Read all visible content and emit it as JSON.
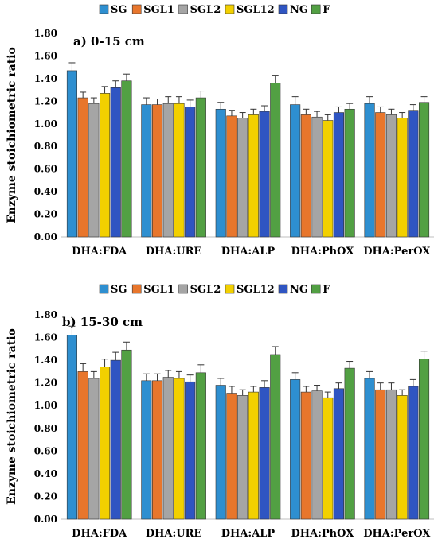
{
  "figure": {
    "ylabel": "Enzyme stoichiometric ratio"
  },
  "legend": [
    {
      "name": "SG",
      "color": "#2E8FD0"
    },
    {
      "name": "SGL1",
      "color": "#E8762C"
    },
    {
      "name": "SGL2",
      "color": "#A5A5A5"
    },
    {
      "name": "SGL12",
      "color": "#F2D000"
    },
    {
      "name": "NG",
      "color": "#2F55C2"
    },
    {
      "name": "F",
      "color": "#52A043"
    }
  ],
  "chart_data": [
    {
      "type": "bar",
      "title": "a) 0-15 cm",
      "ylabel": "Enzyme stoichiometric ratio",
      "ylim": [
        0,
        1.8
      ],
      "yticks": [
        "0.00",
        "0.20",
        "0.40",
        "0.60",
        "0.80",
        "1.00",
        "1.20",
        "1.40",
        "1.60",
        "1.80"
      ],
      "categories": [
        "DHA:FDA",
        "DHA:URE",
        "DHA:ALP",
        "DHA:PhOX",
        "DHA:PerOX"
      ],
      "legend_placement": "top",
      "series": [
        {
          "name": "SG",
          "values": [
            1.47,
            1.17,
            1.13,
            1.17,
            1.18
          ],
          "errors": [
            0.07,
            0.06,
            0.06,
            0.07,
            0.06
          ]
        },
        {
          "name": "SGL1",
          "values": [
            1.23,
            1.17,
            1.07,
            1.08,
            1.1
          ],
          "errors": [
            0.05,
            0.05,
            0.05,
            0.05,
            0.05
          ]
        },
        {
          "name": "SGL2",
          "values": [
            1.18,
            1.18,
            1.05,
            1.06,
            1.08
          ],
          "errors": [
            0.05,
            0.06,
            0.05,
            0.05,
            0.05
          ]
        },
        {
          "name": "SGL12",
          "values": [
            1.27,
            1.18,
            1.08,
            1.03,
            1.05
          ],
          "errors": [
            0.06,
            0.06,
            0.05,
            0.05,
            0.05
          ]
        },
        {
          "name": "NG",
          "values": [
            1.32,
            1.15,
            1.11,
            1.1,
            1.12
          ],
          "errors": [
            0.06,
            0.06,
            0.05,
            0.05,
            0.05
          ]
        },
        {
          "name": "F",
          "values": [
            1.38,
            1.23,
            1.36,
            1.13,
            1.19
          ],
          "errors": [
            0.06,
            0.06,
            0.07,
            0.05,
            0.05
          ]
        }
      ]
    },
    {
      "type": "bar",
      "title": "b) 15-30 cm",
      "ylabel": "Enzyme stoichiometric ratio",
      "ylim": [
        0,
        1.8
      ],
      "yticks": [
        "0.00",
        "0.20",
        "0.40",
        "0.60",
        "0.80",
        "1.00",
        "1.20",
        "1.40",
        "1.60",
        "1.80"
      ],
      "categories": [
        "DHA:FDA",
        "DHA:URE",
        "DHA:ALP",
        "DHA:PhOX",
        "DHA:PerOX"
      ],
      "legend_placement": "top",
      "series": [
        {
          "name": "SG",
          "values": [
            1.62,
            1.22,
            1.18,
            1.23,
            1.24
          ],
          "errors": [
            0.08,
            0.06,
            0.06,
            0.06,
            0.06
          ]
        },
        {
          "name": "SGL1",
          "values": [
            1.3,
            1.22,
            1.11,
            1.12,
            1.14
          ],
          "errors": [
            0.07,
            0.06,
            0.06,
            0.05,
            0.06
          ]
        },
        {
          "name": "SGL2",
          "values": [
            1.24,
            1.25,
            1.09,
            1.13,
            1.14
          ],
          "errors": [
            0.06,
            0.06,
            0.05,
            0.05,
            0.06
          ]
        },
        {
          "name": "SGL12",
          "values": [
            1.34,
            1.24,
            1.12,
            1.07,
            1.09
          ],
          "errors": [
            0.07,
            0.06,
            0.05,
            0.05,
            0.05
          ]
        },
        {
          "name": "NG",
          "values": [
            1.4,
            1.21,
            1.16,
            1.15,
            1.17
          ],
          "errors": [
            0.07,
            0.06,
            0.06,
            0.05,
            0.06
          ]
        },
        {
          "name": "F",
          "values": [
            1.49,
            1.29,
            1.45,
            1.33,
            1.41
          ],
          "errors": [
            0.07,
            0.07,
            0.07,
            0.06,
            0.07
          ]
        }
      ]
    }
  ]
}
